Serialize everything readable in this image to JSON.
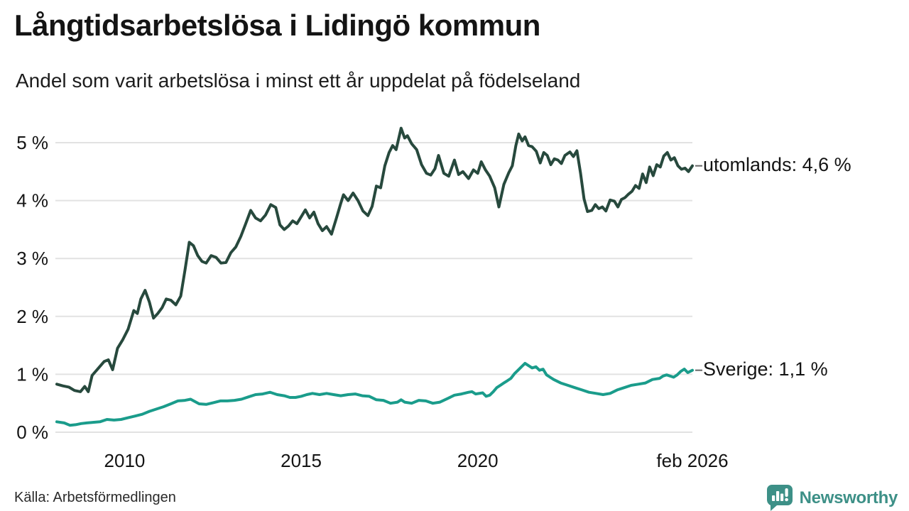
{
  "header": {
    "title": "Långtidsarbetslösa i Lidingö kommun",
    "subtitle": "Andel som varit arbetslösa i minst ett år uppdelat på födelseland"
  },
  "footer": {
    "source": "Källa: Arbetsförmedlingen",
    "brand": "Newsworthy",
    "brand_icon": "newsworthy-speech-bubble-bar-chart-icon"
  },
  "theme": {
    "background": "#ffffff",
    "grid": "#e2e2e2",
    "text": "#141414",
    "connector": "#666666",
    "brand_teal": "#3d9087"
  },
  "chart_data": {
    "type": "line",
    "title": "Långtidsarbetslösa i Lidingö kommun",
    "subtitle": "Andel som varit arbetslösa i minst ett år uppdelat på födelseland",
    "xlabel": "",
    "ylabel": "",
    "x_domain": [
      2008.08,
      2026.08
    ],
    "ylim": [
      0,
      5
    ],
    "grid": "horizontal",
    "legend_position": "right-end-labels",
    "yticks": [
      {
        "v": 0,
        "label": "0 %"
      },
      {
        "v": 1,
        "label": "1 %"
      },
      {
        "v": 2,
        "label": "2 %"
      },
      {
        "v": 3,
        "label": "3 %"
      },
      {
        "v": 4,
        "label": "4 %"
      },
      {
        "v": 5,
        "label": "5 %"
      }
    ],
    "xticks": [
      {
        "x": 2010,
        "label": "2010"
      },
      {
        "x": 2015,
        "label": "2015"
      },
      {
        "x": 2020,
        "label": "2020"
      },
      {
        "x": 2026.08,
        "label": "feb 2026"
      }
    ],
    "series": [
      {
        "name": "utomlands",
        "label": "utomlands: 4,6 %",
        "latest_value": "4,6 %",
        "color": "#27493d",
        "points": [
          [
            2008.08,
            0.83
          ],
          [
            2008.25,
            0.8
          ],
          [
            2008.42,
            0.78
          ],
          [
            2008.58,
            0.72
          ],
          [
            2008.75,
            0.7
          ],
          [
            2008.87,
            0.79
          ],
          [
            2008.97,
            0.7
          ],
          [
            2009.08,
            0.98
          ],
          [
            2009.25,
            1.1
          ],
          [
            2009.42,
            1.22
          ],
          [
            2009.54,
            1.25
          ],
          [
            2009.66,
            1.08
          ],
          [
            2009.8,
            1.45
          ],
          [
            2009.95,
            1.6
          ],
          [
            2010.1,
            1.78
          ],
          [
            2010.26,
            2.1
          ],
          [
            2010.36,
            2.05
          ],
          [
            2010.46,
            2.3
          ],
          [
            2010.58,
            2.45
          ],
          [
            2010.7,
            2.25
          ],
          [
            2010.82,
            1.97
          ],
          [
            2010.94,
            2.05
          ],
          [
            2011.06,
            2.15
          ],
          [
            2011.18,
            2.3
          ],
          [
            2011.31,
            2.28
          ],
          [
            2011.45,
            2.2
          ],
          [
            2011.59,
            2.35
          ],
          [
            2011.71,
            2.8
          ],
          [
            2011.83,
            3.28
          ],
          [
            2011.95,
            3.22
          ],
          [
            2012.07,
            3.05
          ],
          [
            2012.19,
            2.95
          ],
          [
            2012.31,
            2.92
          ],
          [
            2012.45,
            3.05
          ],
          [
            2012.59,
            3.02
          ],
          [
            2012.73,
            2.92
          ],
          [
            2012.87,
            2.93
          ],
          [
            2013.01,
            3.1
          ],
          [
            2013.15,
            3.2
          ],
          [
            2013.29,
            3.38
          ],
          [
            2013.43,
            3.6
          ],
          [
            2013.57,
            3.83
          ],
          [
            2013.71,
            3.7
          ],
          [
            2013.85,
            3.65
          ],
          [
            2013.99,
            3.75
          ],
          [
            2014.14,
            3.93
          ],
          [
            2014.28,
            3.88
          ],
          [
            2014.4,
            3.58
          ],
          [
            2014.52,
            3.5
          ],
          [
            2014.64,
            3.56
          ],
          [
            2014.76,
            3.65
          ],
          [
            2014.88,
            3.6
          ],
          [
            2015.0,
            3.72
          ],
          [
            2015.12,
            3.84
          ],
          [
            2015.24,
            3.7
          ],
          [
            2015.36,
            3.8
          ],
          [
            2015.48,
            3.6
          ],
          [
            2015.6,
            3.48
          ],
          [
            2015.72,
            3.55
          ],
          [
            2015.86,
            3.42
          ],
          [
            2016.0,
            3.7
          ],
          [
            2016.12,
            3.95
          ],
          [
            2016.2,
            4.1
          ],
          [
            2016.33,
            4.0
          ],
          [
            2016.47,
            4.13
          ],
          [
            2016.61,
            4.0
          ],
          [
            2016.75,
            3.82
          ],
          [
            2016.89,
            3.74
          ],
          [
            2017.01,
            3.9
          ],
          [
            2017.13,
            4.25
          ],
          [
            2017.25,
            4.22
          ],
          [
            2017.37,
            4.6
          ],
          [
            2017.49,
            4.83
          ],
          [
            2017.59,
            4.95
          ],
          [
            2017.69,
            4.88
          ],
          [
            2017.83,
            5.25
          ],
          [
            2017.93,
            5.08
          ],
          [
            2018.01,
            5.12
          ],
          [
            2018.13,
            4.98
          ],
          [
            2018.27,
            4.88
          ],
          [
            2018.41,
            4.62
          ],
          [
            2018.55,
            4.47
          ],
          [
            2018.67,
            4.44
          ],
          [
            2018.79,
            4.55
          ],
          [
            2018.89,
            4.78
          ],
          [
            2019.04,
            4.47
          ],
          [
            2019.18,
            4.42
          ],
          [
            2019.34,
            4.7
          ],
          [
            2019.46,
            4.45
          ],
          [
            2019.58,
            4.5
          ],
          [
            2019.74,
            4.38
          ],
          [
            2019.88,
            4.53
          ],
          [
            2020.0,
            4.47
          ],
          [
            2020.1,
            4.67
          ],
          [
            2020.22,
            4.53
          ],
          [
            2020.34,
            4.42
          ],
          [
            2020.48,
            4.22
          ],
          [
            2020.6,
            3.89
          ],
          [
            2020.74,
            4.28
          ],
          [
            2020.88,
            4.48
          ],
          [
            2020.98,
            4.6
          ],
          [
            2021.08,
            4.95
          ],
          [
            2021.16,
            5.15
          ],
          [
            2021.26,
            5.03
          ],
          [
            2021.34,
            5.1
          ],
          [
            2021.44,
            4.95
          ],
          [
            2021.54,
            4.93
          ],
          [
            2021.66,
            4.85
          ],
          [
            2021.77,
            4.65
          ],
          [
            2021.87,
            4.83
          ],
          [
            2021.97,
            4.78
          ],
          [
            2022.07,
            4.62
          ],
          [
            2022.17,
            4.72
          ],
          [
            2022.27,
            4.7
          ],
          [
            2022.37,
            4.64
          ],
          [
            2022.47,
            4.78
          ],
          [
            2022.61,
            4.84
          ],
          [
            2022.71,
            4.76
          ],
          [
            2022.81,
            4.86
          ],
          [
            2022.91,
            4.48
          ],
          [
            2023.01,
            4.03
          ],
          [
            2023.11,
            3.81
          ],
          [
            2023.23,
            3.83
          ],
          [
            2023.33,
            3.93
          ],
          [
            2023.43,
            3.86
          ],
          [
            2023.53,
            3.89
          ],
          [
            2023.63,
            3.82
          ],
          [
            2023.75,
            4.01
          ],
          [
            2023.87,
            3.99
          ],
          [
            2023.97,
            3.89
          ],
          [
            2024.07,
            4.02
          ],
          [
            2024.17,
            4.05
          ],
          [
            2024.27,
            4.11
          ],
          [
            2024.37,
            4.16
          ],
          [
            2024.47,
            4.26
          ],
          [
            2024.57,
            4.21
          ],
          [
            2024.67,
            4.46
          ],
          [
            2024.77,
            4.31
          ],
          [
            2024.87,
            4.58
          ],
          [
            2024.97,
            4.43
          ],
          [
            2025.07,
            4.62
          ],
          [
            2025.17,
            4.58
          ],
          [
            2025.27,
            4.77
          ],
          [
            2025.37,
            4.83
          ],
          [
            2025.47,
            4.7
          ],
          [
            2025.57,
            4.74
          ],
          [
            2025.67,
            4.6
          ],
          [
            2025.77,
            4.54
          ],
          [
            2025.87,
            4.56
          ],
          [
            2025.97,
            4.5
          ],
          [
            2026.08,
            4.6
          ]
        ]
      },
      {
        "name": "Sverige",
        "label": "Sverige: 1,1 %",
        "latest_value": "1,1 %",
        "color": "#1a9c8b",
        "points": [
          [
            2008.08,
            0.18
          ],
          [
            2008.29,
            0.16
          ],
          [
            2008.45,
            0.12
          ],
          [
            2008.61,
            0.13
          ],
          [
            2008.77,
            0.15
          ],
          [
            2008.93,
            0.16
          ],
          [
            2009.1,
            0.17
          ],
          [
            2009.3,
            0.18
          ],
          [
            2009.5,
            0.22
          ],
          [
            2009.7,
            0.21
          ],
          [
            2009.9,
            0.22
          ],
          [
            2010.1,
            0.25
          ],
          [
            2010.3,
            0.28
          ],
          [
            2010.5,
            0.31
          ],
          [
            2010.7,
            0.36
          ],
          [
            2010.9,
            0.4
          ],
          [
            2011.1,
            0.44
          ],
          [
            2011.31,
            0.49
          ],
          [
            2011.51,
            0.54
          ],
          [
            2011.71,
            0.55
          ],
          [
            2011.87,
            0.57
          ],
          [
            2012.11,
            0.49
          ],
          [
            2012.31,
            0.48
          ],
          [
            2012.51,
            0.51
          ],
          [
            2012.71,
            0.54
          ],
          [
            2012.91,
            0.54
          ],
          [
            2013.11,
            0.55
          ],
          [
            2013.31,
            0.57
          ],
          [
            2013.51,
            0.61
          ],
          [
            2013.71,
            0.65
          ],
          [
            2013.91,
            0.66
          ],
          [
            2014.12,
            0.69
          ],
          [
            2014.32,
            0.65
          ],
          [
            2014.52,
            0.63
          ],
          [
            2014.68,
            0.6
          ],
          [
            2014.84,
            0.6
          ],
          [
            2015.0,
            0.62
          ],
          [
            2015.16,
            0.65
          ],
          [
            2015.32,
            0.67
          ],
          [
            2015.52,
            0.65
          ],
          [
            2015.72,
            0.67
          ],
          [
            2015.92,
            0.65
          ],
          [
            2016.12,
            0.63
          ],
          [
            2016.33,
            0.65
          ],
          [
            2016.53,
            0.66
          ],
          [
            2016.73,
            0.63
          ],
          [
            2016.93,
            0.62
          ],
          [
            2017.13,
            0.56
          ],
          [
            2017.33,
            0.55
          ],
          [
            2017.53,
            0.5
          ],
          [
            2017.73,
            0.52
          ],
          [
            2017.83,
            0.56
          ],
          [
            2017.93,
            0.52
          ],
          [
            2018.13,
            0.5
          ],
          [
            2018.33,
            0.55
          ],
          [
            2018.53,
            0.54
          ],
          [
            2018.73,
            0.5
          ],
          [
            2018.93,
            0.52
          ],
          [
            2019.14,
            0.58
          ],
          [
            2019.34,
            0.64
          ],
          [
            2019.54,
            0.66
          ],
          [
            2019.74,
            0.69
          ],
          [
            2019.84,
            0.7
          ],
          [
            2019.94,
            0.66
          ],
          [
            2020.14,
            0.68
          ],
          [
            2020.24,
            0.62
          ],
          [
            2020.34,
            0.64
          ],
          [
            2020.44,
            0.7
          ],
          [
            2020.54,
            0.77
          ],
          [
            2020.64,
            0.81
          ],
          [
            2020.74,
            0.85
          ],
          [
            2020.84,
            0.89
          ],
          [
            2020.94,
            0.93
          ],
          [
            2021.04,
            1.01
          ],
          [
            2021.14,
            1.07
          ],
          [
            2021.24,
            1.13
          ],
          [
            2021.34,
            1.19
          ],
          [
            2021.44,
            1.15
          ],
          [
            2021.54,
            1.11
          ],
          [
            2021.65,
            1.13
          ],
          [
            2021.75,
            1.07
          ],
          [
            2021.85,
            1.09
          ],
          [
            2021.95,
            0.99
          ],
          [
            2022.05,
            0.95
          ],
          [
            2022.15,
            0.91
          ],
          [
            2022.35,
            0.85
          ],
          [
            2022.55,
            0.81
          ],
          [
            2022.75,
            0.77
          ],
          [
            2022.95,
            0.73
          ],
          [
            2023.15,
            0.69
          ],
          [
            2023.35,
            0.67
          ],
          [
            2023.55,
            0.65
          ],
          [
            2023.75,
            0.67
          ],
          [
            2023.95,
            0.73
          ],
          [
            2024.15,
            0.77
          ],
          [
            2024.35,
            0.81
          ],
          [
            2024.55,
            0.83
          ],
          [
            2024.75,
            0.85
          ],
          [
            2024.95,
            0.91
          ],
          [
            2025.15,
            0.93
          ],
          [
            2025.25,
            0.97
          ],
          [
            2025.35,
            0.99
          ],
          [
            2025.55,
            0.95
          ],
          [
            2025.65,
            0.99
          ],
          [
            2025.75,
            1.05
          ],
          [
            2025.85,
            1.09
          ],
          [
            2025.95,
            1.03
          ],
          [
            2026.08,
            1.07
          ]
        ]
      }
    ]
  }
}
